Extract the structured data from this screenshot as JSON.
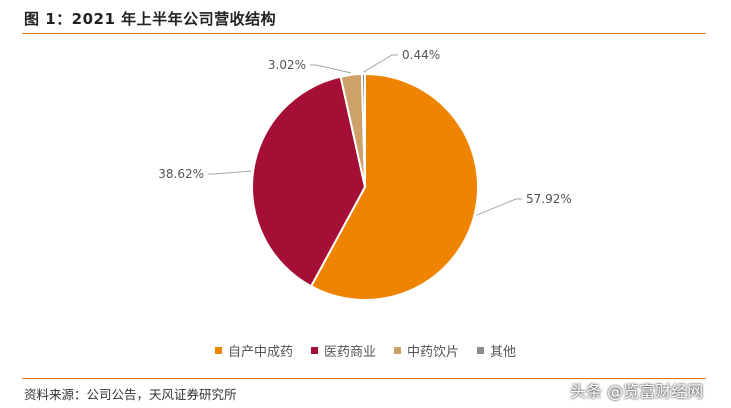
{
  "header": {
    "title": "图 1：2021 年上半年公司营收结构"
  },
  "source_note": "资料来源：公司公告，天风证券研究所",
  "watermark": "头条 @览富财经网",
  "chart_data": {
    "type": "pie",
    "title": "",
    "start_angle_deg": 0,
    "slices": [
      {
        "name": "自产中成药",
        "value": 57.92,
        "label": "57.92%",
        "color": "#EE8400"
      },
      {
        "name": "医药商业",
        "value": 38.62,
        "label": "38.62%",
        "color": "#A50F36"
      },
      {
        "name": "中药饮片",
        "value": 3.02,
        "label": "3.02%",
        "color": "#CFA16A"
      },
      {
        "name": "其他",
        "value": 0.44,
        "label": "0.44%",
        "color": "#8C8C8C"
      }
    ],
    "legend_position": "bottom"
  }
}
